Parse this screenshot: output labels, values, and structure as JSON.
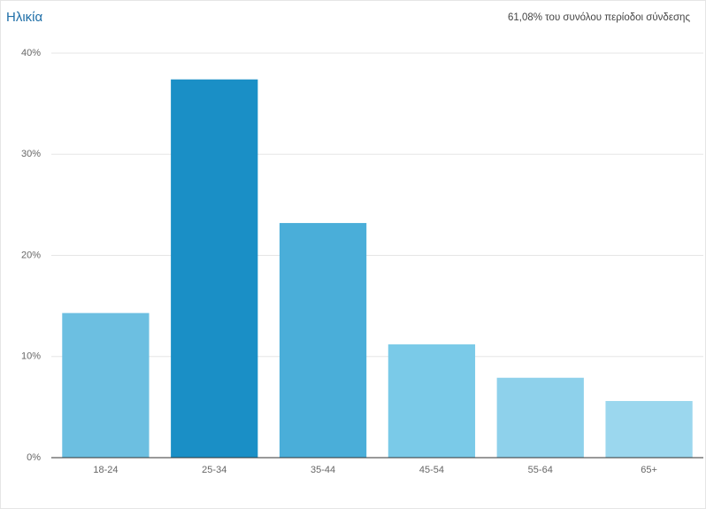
{
  "chart_data": {
    "type": "bar",
    "title": "Ηλικία",
    "subtitle": "61,08% του συνόλου περίοδοι σύνδεσης",
    "categories": [
      "18-24",
      "25-34",
      "35-44",
      "45-54",
      "55-64",
      "65+"
    ],
    "values": [
      14.3,
      37.4,
      23.2,
      11.2,
      7.9,
      5.6
    ],
    "colors": [
      "#6cbfe1",
      "#1a8fc6",
      "#4aaed9",
      "#7acae8",
      "#8ed1eb",
      "#9bd7ee"
    ],
    "ylim": [
      0,
      40
    ],
    "yticks": [
      {
        "value": 0,
        "label": "0%"
      },
      {
        "value": 10,
        "label": "10%"
      },
      {
        "value": 20,
        "label": "20%"
      },
      {
        "value": 30,
        "label": "30%"
      },
      {
        "value": 40,
        "label": "40%"
      }
    ],
    "grid": true
  }
}
